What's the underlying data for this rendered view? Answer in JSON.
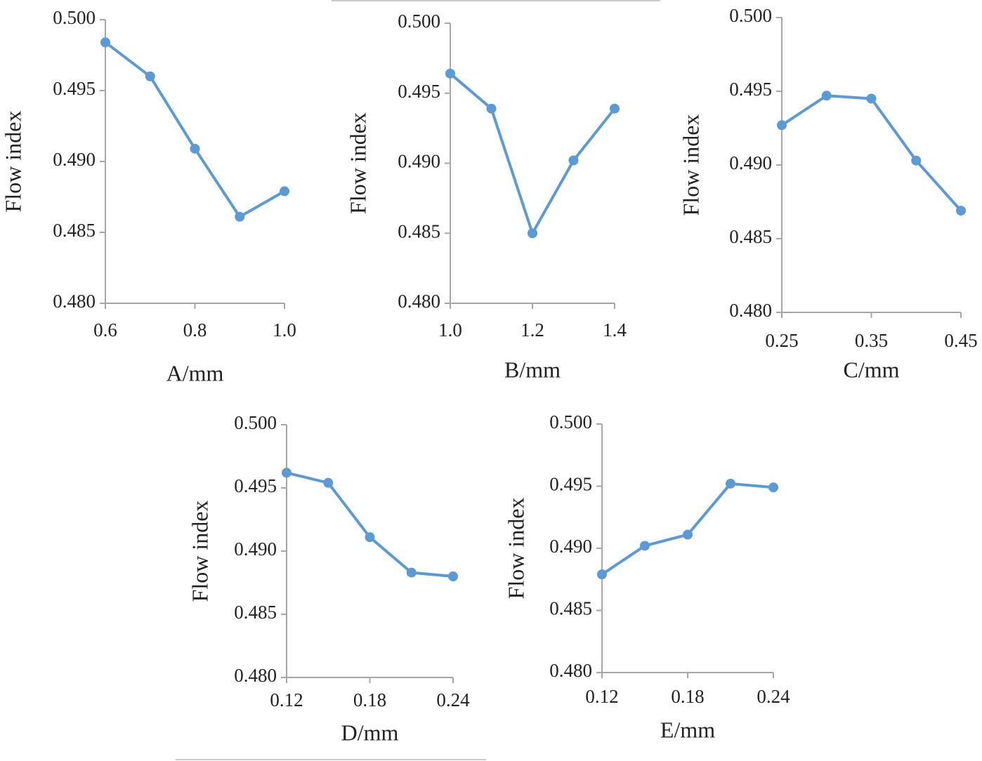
{
  "chart_data": [
    {
      "type": "line",
      "xlabel": "A/mm",
      "ylabel": "Flow index",
      "color": "#5b9bd5",
      "x": [
        0.6,
        0.7,
        0.8,
        0.9,
        1.0
      ],
      "values": [
        0.4984,
        0.496,
        0.4909,
        0.4861,
        0.4879
      ],
      "xlim": [
        0.6,
        1.0
      ],
      "xticks": [
        0.6,
        0.8,
        {
          "value": 1.0,
          "label": "1.0"
        }
      ],
      "ylim": [
        0.48,
        0.5
      ],
      "yticks": [
        {
          "value": 0.48,
          "label": "0.480"
        },
        0.485,
        {
          "value": 0.49,
          "label": "0.490"
        },
        0.495,
        {
          "value": 0.5,
          "label": "0.500"
        }
      ]
    },
    {
      "type": "line",
      "xlabel": "B/mm",
      "ylabel": "Flow index",
      "color": "#5b9bd5",
      "x": [
        1.0,
        1.1,
        1.2,
        1.3,
        1.4
      ],
      "values": [
        0.4964,
        0.4939,
        0.485,
        0.4902,
        0.4939
      ],
      "xlim": [
        1.0,
        1.4
      ],
      "xticks": [
        {
          "value": 1.0,
          "label": "1.0"
        },
        1.2,
        1.4
      ],
      "ylim": [
        0.48,
        0.5
      ],
      "yticks": [
        {
          "value": 0.48,
          "label": "0.480"
        },
        0.485,
        {
          "value": 0.49,
          "label": "0.490"
        },
        0.495,
        {
          "value": 0.5,
          "label": "0.500"
        }
      ]
    },
    {
      "type": "line",
      "xlabel": "C/mm",
      "ylabel": "Flow index",
      "color": "#5b9bd5",
      "x": [
        0.25,
        0.3,
        0.35,
        0.4,
        0.45
      ],
      "values": [
        0.4927,
        0.4947,
        0.4945,
        0.4903,
        0.4869
      ],
      "xlim": [
        0.25,
        0.45
      ],
      "xticks": [
        0.25,
        0.35,
        0.45
      ],
      "ylim": [
        0.48,
        0.5
      ],
      "yticks": [
        {
          "value": 0.48,
          "label": "0.480"
        },
        0.485,
        {
          "value": 0.49,
          "label": "0.490"
        },
        0.495,
        {
          "value": 0.5,
          "label": "0.500"
        }
      ]
    },
    {
      "type": "line",
      "xlabel": "D/mm",
      "ylabel": "Flow index",
      "color": "#5b9bd5",
      "x": [
        0.12,
        0.15,
        0.18,
        0.21,
        0.24
      ],
      "values": [
        0.4962,
        0.4954,
        0.4911,
        0.4883,
        0.488
      ],
      "xlim": [
        0.12,
        0.24
      ],
      "xticks": [
        0.12,
        0.18,
        0.24
      ],
      "ylim": [
        0.48,
        0.5
      ],
      "yticks": [
        {
          "value": 0.48,
          "label": "0.480"
        },
        0.485,
        {
          "value": 0.49,
          "label": "0.490"
        },
        0.495,
        {
          "value": 0.5,
          "label": "0.500"
        }
      ]
    },
    {
      "type": "line",
      "xlabel": "E/mm",
      "ylabel": "Flow index",
      "color": "#5b9bd5",
      "x": [
        0.12,
        0.15,
        0.18,
        0.21,
        0.24
      ],
      "values": [
        0.4879,
        0.4902,
        0.4911,
        0.4952,
        0.4949
      ],
      "xlim": [
        0.12,
        0.24
      ],
      "xticks": [
        0.12,
        0.18,
        0.24
      ],
      "ylim": [
        0.48,
        0.5
      ],
      "yticks": [
        {
          "value": 0.48,
          "label": "0.480"
        },
        0.485,
        {
          "value": 0.49,
          "label": "0.490"
        },
        0.495,
        {
          "value": 0.5,
          "label": "0.500"
        }
      ]
    }
  ]
}
